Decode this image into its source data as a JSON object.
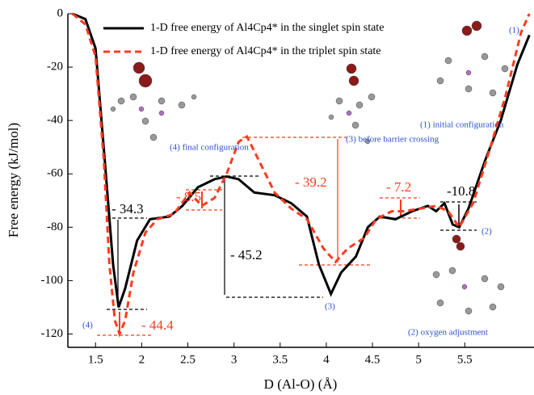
{
  "chart_data": {
    "type": "line",
    "xlabel": "D (Al-O) (Å)",
    "ylabel": "Free energy (kJ/mol)",
    "xlim": [
      1.2,
      6.25
    ],
    "ylim": [
      -125,
      0
    ],
    "xticks": [
      1.5,
      2.0,
      2.5,
      3.0,
      3.5,
      4.0,
      4.5,
      5.0,
      5.5
    ],
    "yticks": [
      0,
      -20,
      -40,
      -60,
      -80,
      -100,
      -120
    ],
    "series": [
      {
        "name": "1-D free energy of Al4Cp4* in the singlet spin state",
        "color": "#000000",
        "dash": false,
        "x": [
          1.25,
          1.39,
          1.5,
          1.6,
          1.69,
          1.75,
          1.82,
          1.95,
          2.09,
          2.3,
          2.44,
          2.61,
          2.79,
          2.92,
          3.05,
          3.22,
          3.44,
          3.62,
          3.79,
          3.92,
          4.05,
          4.16,
          4.32,
          4.45,
          4.58,
          4.75,
          4.93,
          5.1,
          5.19,
          5.28,
          5.37,
          5.44,
          5.54,
          5.72,
          5.89,
          6.07,
          6.2
        ],
        "values": [
          0,
          -2,
          -13,
          -55,
          -94,
          -110,
          -103,
          -85,
          -77,
          -76,
          -72,
          -65,
          -62,
          -61,
          -62,
          -67,
          -68,
          -71,
          -76,
          -94,
          -105,
          -97,
          -91,
          -80,
          -76,
          -77,
          -74,
          -72,
          -74,
          -71,
          -79,
          -80,
          -73,
          -55,
          -40,
          -19,
          -8
        ]
      },
      {
        "name": "1-D free energy of Al4Cp4* in the triplet spin state",
        "color": "#ff3b1f",
        "dash": true,
        "x": [
          1.25,
          1.39,
          1.5,
          1.59,
          1.65,
          1.71,
          1.76,
          1.82,
          1.91,
          2.04,
          2.17,
          2.35,
          2.52,
          2.65,
          2.79,
          2.92,
          3.05,
          3.14,
          3.27,
          3.44,
          3.62,
          3.79,
          3.97,
          4.1,
          4.23,
          4.41,
          4.54,
          4.71,
          4.84,
          5.02,
          5.19,
          5.32,
          5.44,
          5.59,
          5.76,
          5.94,
          6.11,
          6.2
        ],
        "values": [
          0,
          -4,
          -16,
          -55,
          -94,
          -115,
          -120,
          -115,
          -97,
          -82,
          -77,
          -75,
          -67,
          -72,
          -69,
          -60,
          -48,
          -46,
          -55,
          -67,
          -73,
          -77,
          -88,
          -93,
          -88,
          -84,
          -77,
          -74,
          -74,
          -73,
          -72,
          -74,
          -80,
          -71,
          -52,
          -31,
          -7,
          0
        ]
      }
    ],
    "annotations": [
      "- 34.3",
      "- 8.5",
      "- 45.2",
      "- 39.2",
      "- 7.2",
      "-10.8",
      "- 44.4",
      "(1) initial configuration",
      "(2) oxygen adjustment",
      "(3) before barrier crossing",
      "(4) final configuration",
      "(1)",
      "(2)",
      "(3)",
      "(4)"
    ]
  }
}
